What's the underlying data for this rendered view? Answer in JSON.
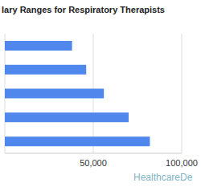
{
  "chart_data": {
    "type": "bar",
    "title": "lary Ranges for Respiratory Therapists",
    "orientation": "horizontal",
    "categories": [
      null,
      null,
      null,
      null,
      null
    ],
    "values": [
      38000,
      46000,
      56000,
      70000,
      82000
    ],
    "color": "#5087ec",
    "xlim": [
      0,
      100000
    ],
    "xticks": [
      {
        "value": 50000,
        "label": "50,000"
      },
      {
        "value": 100000,
        "label": "100,000"
      }
    ],
    "grid": true,
    "tick_labels": "x",
    "annotations": [
      "HealthcareDe"
    ]
  }
}
